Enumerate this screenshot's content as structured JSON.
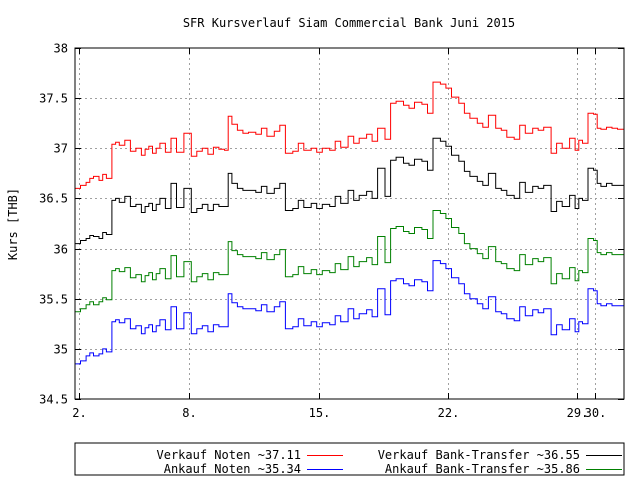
{
  "chart_data": {
    "type": "line",
    "title": "SFR Kursverlauf Siam Commercial Bank Juni 2015",
    "ylabel": "Kurs [THB]",
    "xlabel": "",
    "xlim": [
      1.8,
      31.55
    ],
    "ylim": [
      34.5,
      38
    ],
    "yticks": [
      34.5,
      35,
      35.5,
      36,
      36.5,
      37,
      37.5,
      38
    ],
    "xticks": [
      {
        "value": 2,
        "label": "2."
      },
      {
        "value": 8,
        "label": "8."
      },
      {
        "value": 15,
        "label": "15."
      },
      {
        "value": 22,
        "label": "22."
      },
      {
        "value": 29,
        "label": "29."
      },
      {
        "value": 30,
        "label": "30."
      }
    ],
    "grid": true,
    "legend_position": "bottom",
    "series": [
      {
        "name": "Verkauf Noten ~37.11",
        "color": "#ff0000",
        "x": [
          1.8,
          2.1,
          2.4,
          2.6,
          2.8,
          3.1,
          3.3,
          3.5,
          3.8,
          4.0,
          4.2,
          4.5,
          4.8,
          5.1,
          5.4,
          5.6,
          5.8,
          6.0,
          6.2,
          6.4,
          6.7,
          7.0,
          7.3,
          7.7,
          8.1,
          8.4,
          8.7,
          9.0,
          9.3,
          9.6,
          9.9,
          10.1,
          10.3,
          10.6,
          10.9,
          11.2,
          11.6,
          11.9,
          12.2,
          12.6,
          12.9,
          13.2,
          13.6,
          13.9,
          14.2,
          14.6,
          14.9,
          15.2,
          15.6,
          15.9,
          16.2,
          16.6,
          16.9,
          17.2,
          17.6,
          17.9,
          18.2,
          18.6,
          18.9,
          19.2,
          19.6,
          19.9,
          20.2,
          20.6,
          20.9,
          21.2,
          21.6,
          21.9,
          22.2,
          22.6,
          22.9,
          23.2,
          23.6,
          23.9,
          24.2,
          24.6,
          24.9,
          25.2,
          25.6,
          25.9,
          26.2,
          26.6,
          26.9,
          27.2,
          27.6,
          27.9,
          28.2,
          28.6,
          28.9,
          29.1,
          29.3,
          29.6,
          29.9,
          30.1,
          30.3,
          30.6,
          30.9,
          31.2,
          31.55
        ],
        "y": [
          36.6,
          36.63,
          36.66,
          36.7,
          36.72,
          36.68,
          36.74,
          36.7,
          37.04,
          37.06,
          37.03,
          37.08,
          36.97,
          37.0,
          36.93,
          36.99,
          37.02,
          36.95,
          37.0,
          37.05,
          36.96,
          37.1,
          36.96,
          37.15,
          36.92,
          36.97,
          37.0,
          36.94,
          37.01,
          36.99,
          36.98,
          37.32,
          37.24,
          37.18,
          37.15,
          37.16,
          37.14,
          37.2,
          37.12,
          37.17,
          37.23,
          36.95,
          36.97,
          37.05,
          36.98,
          37.0,
          36.96,
          37.0,
          36.98,
          37.07,
          37.01,
          37.12,
          37.05,
          37.1,
          37.14,
          37.07,
          37.2,
          37.09,
          37.45,
          37.47,
          37.43,
          37.4,
          37.46,
          37.44,
          37.35,
          37.66,
          37.64,
          37.6,
          37.51,
          37.45,
          37.35,
          37.3,
          37.25,
          37.21,
          37.33,
          37.2,
          37.18,
          37.11,
          37.09,
          37.23,
          37.15,
          37.2,
          37.18,
          37.21,
          36.95,
          37.05,
          37.0,
          37.1,
          36.98,
          37.08,
          37.05,
          37.35,
          37.34,
          37.2,
          37.19,
          37.21,
          37.2,
          37.19,
          37.2
        ]
      },
      {
        "name": "Verkauf Bank-Transfer ~36.55",
        "color": "#000000",
        "x": [
          1.8,
          2.1,
          2.4,
          2.6,
          2.8,
          3.1,
          3.3,
          3.5,
          3.8,
          4.0,
          4.2,
          4.5,
          4.8,
          5.1,
          5.4,
          5.6,
          5.8,
          6.0,
          6.2,
          6.4,
          6.7,
          7.0,
          7.3,
          7.7,
          8.1,
          8.4,
          8.7,
          9.0,
          9.3,
          9.6,
          9.9,
          10.1,
          10.3,
          10.6,
          10.9,
          11.2,
          11.6,
          11.9,
          12.2,
          12.6,
          12.9,
          13.2,
          13.6,
          13.9,
          14.2,
          14.6,
          14.9,
          15.2,
          15.6,
          15.9,
          16.2,
          16.6,
          16.9,
          17.2,
          17.6,
          17.9,
          18.2,
          18.6,
          18.9,
          19.2,
          19.6,
          19.9,
          20.2,
          20.6,
          20.9,
          21.2,
          21.6,
          21.9,
          22.2,
          22.6,
          22.9,
          23.2,
          23.6,
          23.9,
          24.2,
          24.6,
          24.9,
          25.2,
          25.6,
          25.9,
          26.2,
          26.6,
          26.9,
          27.2,
          27.6,
          27.9,
          28.2,
          28.6,
          28.9,
          29.1,
          29.3,
          29.6,
          29.9,
          30.1,
          30.3,
          30.6,
          30.9,
          31.2,
          31.55
        ],
        "y": [
          36.05,
          36.08,
          36.1,
          36.13,
          36.12,
          36.1,
          36.16,
          36.14,
          36.48,
          36.5,
          36.46,
          36.52,
          36.42,
          36.44,
          36.36,
          36.42,
          36.45,
          36.38,
          36.44,
          36.5,
          36.4,
          36.65,
          36.41,
          36.6,
          36.36,
          36.4,
          36.44,
          36.38,
          36.44,
          36.42,
          36.42,
          36.75,
          36.65,
          36.6,
          36.58,
          36.58,
          36.56,
          36.62,
          36.55,
          36.6,
          36.65,
          36.38,
          36.4,
          36.48,
          36.41,
          36.45,
          36.4,
          36.44,
          36.42,
          36.52,
          36.45,
          36.58,
          36.48,
          36.53,
          36.57,
          36.5,
          36.8,
          36.52,
          36.88,
          36.91,
          36.85,
          36.83,
          36.89,
          36.87,
          36.78,
          37.1,
          37.07,
          37.02,
          36.93,
          36.87,
          36.77,
          36.72,
          36.67,
          36.63,
          36.75,
          36.6,
          36.58,
          36.53,
          36.5,
          36.66,
          36.56,
          36.62,
          36.6,
          36.63,
          36.37,
          36.47,
          36.42,
          36.53,
          36.4,
          36.5,
          36.48,
          36.8,
          36.78,
          36.65,
          36.62,
          36.65,
          36.63,
          36.63,
          36.65
        ]
      },
      {
        "name": "Ankauf Noten ~35.34",
        "color": "#0000ff",
        "x": [
          1.8,
          2.1,
          2.4,
          2.6,
          2.8,
          3.1,
          3.3,
          3.5,
          3.8,
          4.0,
          4.2,
          4.5,
          4.8,
          5.1,
          5.4,
          5.6,
          5.8,
          6.0,
          6.2,
          6.4,
          6.7,
          7.0,
          7.3,
          7.7,
          8.1,
          8.4,
          8.7,
          9.0,
          9.3,
          9.6,
          9.9,
          10.1,
          10.3,
          10.6,
          10.9,
          11.2,
          11.6,
          11.9,
          12.2,
          12.6,
          12.9,
          13.2,
          13.6,
          13.9,
          14.2,
          14.6,
          14.9,
          15.2,
          15.6,
          15.9,
          16.2,
          16.6,
          16.9,
          17.2,
          17.6,
          17.9,
          18.2,
          18.6,
          18.9,
          19.2,
          19.6,
          19.9,
          20.2,
          20.6,
          20.9,
          21.2,
          21.6,
          21.9,
          22.2,
          22.6,
          22.9,
          23.2,
          23.6,
          23.9,
          24.2,
          24.6,
          24.9,
          25.2,
          25.6,
          25.9,
          26.2,
          26.6,
          26.9,
          27.2,
          27.6,
          27.9,
          28.2,
          28.6,
          28.9,
          29.1,
          29.3,
          29.6,
          29.9,
          30.1,
          30.3,
          30.6,
          30.9,
          31.2,
          31.55
        ],
        "y": [
          34.85,
          34.88,
          34.93,
          34.96,
          34.93,
          34.95,
          35.0,
          34.97,
          35.27,
          35.29,
          35.26,
          35.3,
          35.2,
          35.23,
          35.15,
          35.21,
          35.24,
          35.17,
          35.23,
          35.29,
          35.19,
          35.42,
          35.2,
          35.36,
          35.15,
          35.2,
          35.23,
          35.17,
          35.24,
          35.22,
          35.22,
          35.55,
          35.46,
          35.42,
          35.4,
          35.4,
          35.38,
          35.44,
          35.37,
          35.42,
          35.47,
          35.2,
          35.22,
          35.3,
          35.23,
          35.27,
          35.22,
          35.26,
          35.24,
          35.33,
          35.27,
          35.4,
          35.3,
          35.35,
          35.39,
          35.32,
          35.6,
          35.34,
          35.68,
          35.7,
          35.65,
          35.63,
          35.69,
          35.67,
          35.58,
          35.88,
          35.85,
          35.8,
          35.71,
          35.65,
          35.55,
          35.5,
          35.45,
          35.4,
          35.52,
          35.37,
          35.35,
          35.3,
          35.28,
          35.42,
          35.33,
          35.39,
          35.36,
          35.4,
          35.14,
          35.24,
          35.19,
          35.3,
          35.17,
          35.27,
          35.25,
          35.6,
          35.58,
          35.45,
          35.43,
          35.45,
          35.43,
          35.43,
          35.45
        ]
      },
      {
        "name": "Ankauf Bank-Transfer ~35.86",
        "color": "#008000",
        "x": [
          1.8,
          2.1,
          2.4,
          2.6,
          2.8,
          3.1,
          3.3,
          3.5,
          3.8,
          4.0,
          4.2,
          4.5,
          4.8,
          5.1,
          5.4,
          5.6,
          5.8,
          6.0,
          6.2,
          6.4,
          6.7,
          7.0,
          7.3,
          7.7,
          8.1,
          8.4,
          8.7,
          9.0,
          9.3,
          9.6,
          9.9,
          10.1,
          10.3,
          10.6,
          10.9,
          11.2,
          11.6,
          11.9,
          12.2,
          12.6,
          12.9,
          13.2,
          13.6,
          13.9,
          14.2,
          14.6,
          14.9,
          15.2,
          15.6,
          15.9,
          16.2,
          16.6,
          16.9,
          17.2,
          17.6,
          17.9,
          18.2,
          18.6,
          18.9,
          19.2,
          19.6,
          19.9,
          20.2,
          20.6,
          20.9,
          21.2,
          21.6,
          21.9,
          22.2,
          22.6,
          22.9,
          23.2,
          23.6,
          23.9,
          24.2,
          24.6,
          24.9,
          25.2,
          25.6,
          25.9,
          26.2,
          26.6,
          26.9,
          27.2,
          27.6,
          27.9,
          28.2,
          28.6,
          28.9,
          29.1,
          29.3,
          29.6,
          29.9,
          30.1,
          30.3,
          30.6,
          30.9,
          31.2,
          31.55
        ],
        "y": [
          35.37,
          35.4,
          35.44,
          35.47,
          35.44,
          35.47,
          35.51,
          35.49,
          35.78,
          35.8,
          35.77,
          35.81,
          35.71,
          35.74,
          35.67,
          35.73,
          35.76,
          35.69,
          35.75,
          35.8,
          35.7,
          35.93,
          35.72,
          35.87,
          35.67,
          35.72,
          35.75,
          35.69,
          35.76,
          35.74,
          35.74,
          36.07,
          35.98,
          35.94,
          35.92,
          35.92,
          35.9,
          35.96,
          35.89,
          35.94,
          35.99,
          35.72,
          35.74,
          35.82,
          35.75,
          35.79,
          35.74,
          35.78,
          35.76,
          35.85,
          35.79,
          35.92,
          35.82,
          35.87,
          35.91,
          35.84,
          36.12,
          35.86,
          36.2,
          36.22,
          36.17,
          36.15,
          36.21,
          36.19,
          36.1,
          36.38,
          36.35,
          36.3,
          36.21,
          36.15,
          36.05,
          36.0,
          35.95,
          35.9,
          36.02,
          35.87,
          35.85,
          35.8,
          35.78,
          35.94,
          35.84,
          35.9,
          35.87,
          35.91,
          35.65,
          35.75,
          35.7,
          35.81,
          35.68,
          35.78,
          35.76,
          36.1,
          36.08,
          35.96,
          35.94,
          35.96,
          35.94,
          35.94,
          35.96
        ]
      }
    ]
  }
}
